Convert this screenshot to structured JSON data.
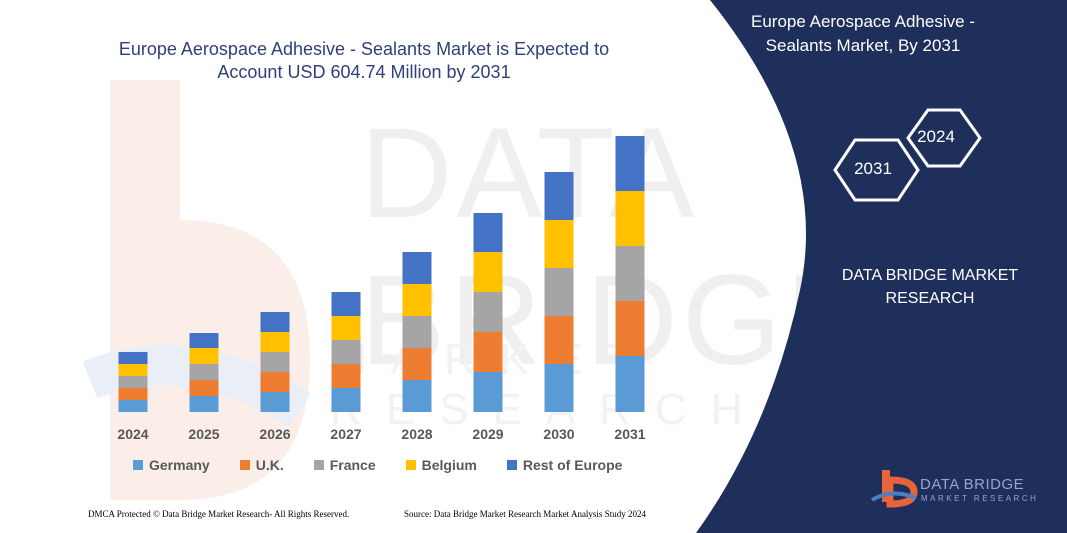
{
  "chart_data": {
    "type": "bar",
    "stacked": true,
    "title": "Europe Aerospace Adhesive - Sealants Market is Expected to Account USD 604.74 Million by 2031",
    "categories": [
      "2024",
      "2025",
      "2026",
      "2027",
      "2028",
      "2029",
      "2030",
      "2031"
    ],
    "series": [
      {
        "name": "Germany",
        "color": "#5b9bd5",
        "values": [
          12,
          16,
          20,
          24,
          32,
          40,
          48,
          56
        ]
      },
      {
        "name": "U.K.",
        "color": "#ed7d31",
        "values": [
          12,
          16,
          20,
          24,
          32,
          40,
          48,
          55
        ]
      },
      {
        "name": "France",
        "color": "#a5a5a5",
        "values": [
          12,
          16,
          20,
          24,
          32,
          40,
          48,
          55
        ]
      },
      {
        "name": "Belgium",
        "color": "#ffc000",
        "values": [
          12,
          16,
          20,
          24,
          32,
          40,
          48,
          55
        ]
      },
      {
        "name": "Rest of Europe",
        "color": "#4472c4",
        "values": [
          12,
          15,
          20,
          24,
          32,
          39,
          48,
          55
        ]
      }
    ],
    "xlabel": "",
    "ylabel": "",
    "grid": false,
    "legend_position": "bottom"
  },
  "panel": {
    "title": "Europe Aerospace Adhesive - Sealants Market, By 2031",
    "hex_top": "2024",
    "hex_bottom": "2031",
    "brand": "DATA BRIDGE MARKET RESEARCH",
    "panel_color": "#1f2f5c"
  },
  "logo": {
    "name": "DATA BRIDGE",
    "tagline": "MARKET RESEARCH"
  },
  "watermark": {
    "main": "DATA BRIDGE",
    "sub": "MARKET RESEARCH"
  },
  "footer": {
    "left": "DMCA Protected © Data Bridge Market Research- All Rights Reserved.",
    "right": "Source: Data Bridge Market Research Market Analysis Study 2024"
  }
}
